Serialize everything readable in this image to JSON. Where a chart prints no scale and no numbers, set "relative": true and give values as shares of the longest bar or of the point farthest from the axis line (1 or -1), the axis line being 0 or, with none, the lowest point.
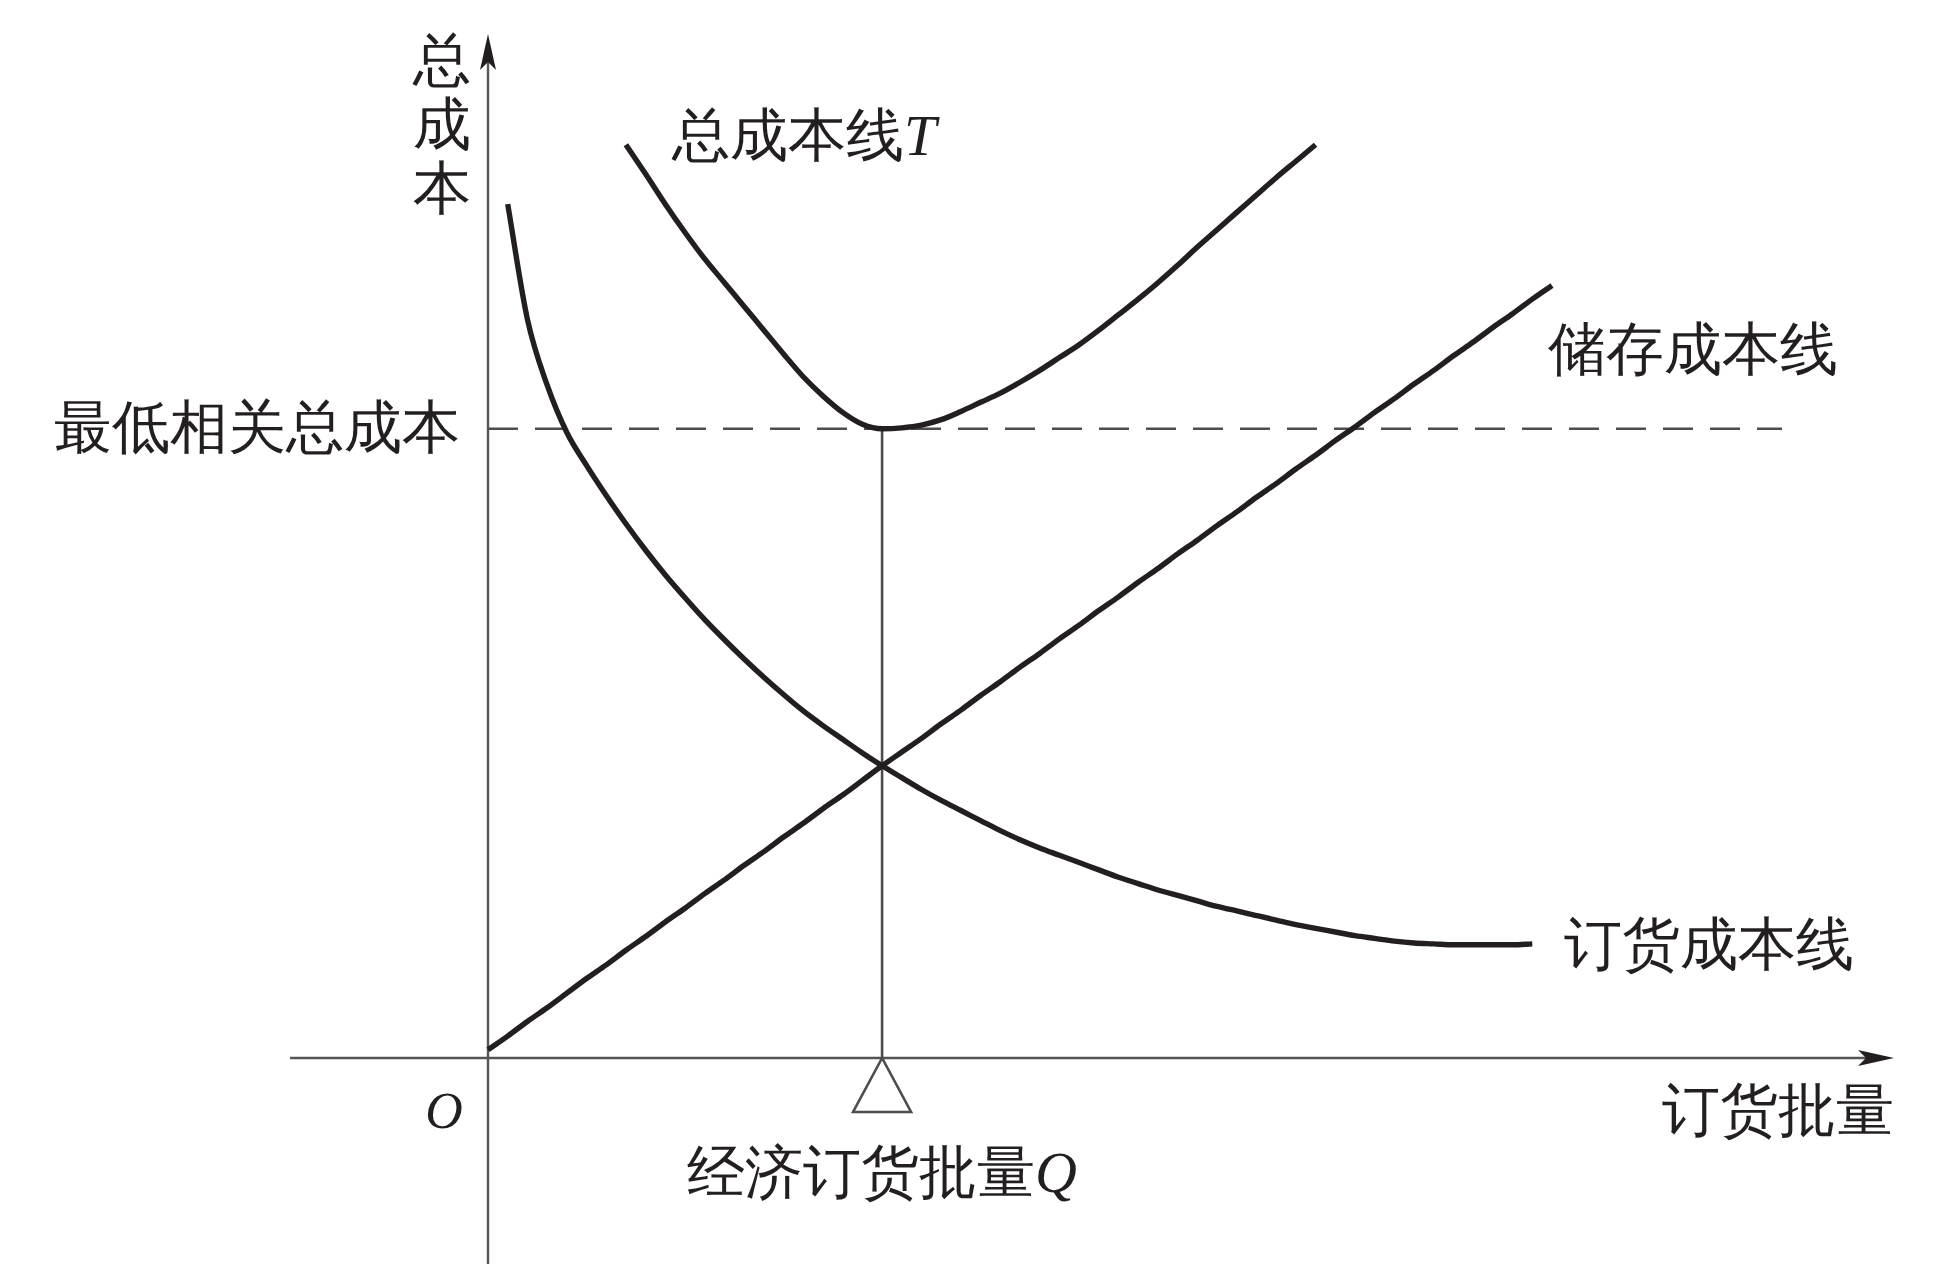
{
  "chart_data": {
    "type": "line",
    "relative": true,
    "xlabel": "订货批量",
    "ylabel": "总成本",
    "line_style": "solid",
    "categories": [
      null,
      null,
      null,
      null,
      null,
      null,
      null,
      null,
      null,
      null,
      null,
      null,
      null,
      null,
      null,
      null,
      null,
      null,
      null,
      null,
      null,
      null,
      null,
      null,
      null,
      null,
      null,
      null,
      null,
      null,
      null,
      null,
      null,
      null,
      null,
      null,
      null,
      null,
      null,
      null,
      null,
      null,
      null,
      null,
      null,
      null,
      null,
      null,
      null,
      null,
      null,
      null,
      null,
      null,
      null
    ],
    "series": [
      {
        "name": "总成本线T",
        "color": "#231f20",
        "values": [
          null,
          null,
          null,
          null,
          null,
          null,
          null,
          1.0,
          0.968,
          0.935,
          0.904,
          0.875,
          0.849,
          0.823,
          0.797,
          0.771,
          0.746,
          0.725,
          0.707,
          0.694,
          0.689,
          0.69,
          0.693,
          0.699,
          0.708,
          0.718,
          0.728,
          0.74,
          0.753,
          0.767,
          0.781,
          0.797,
          0.814,
          0.831,
          0.849,
          0.868,
          0.888,
          0.907,
          0.926,
          0.945,
          0.964,
          0.982,
          1.0,
          null,
          null,
          null,
          null,
          null,
          null,
          null,
          null,
          null,
          null,
          null,
          null
        ]
      },
      {
        "name": "储存成本线",
        "color": "#231f20",
        "values": [
          0.009,
          0.024,
          0.04,
          0.055,
          0.071,
          0.087,
          0.102,
          0.118,
          0.133,
          0.149,
          0.164,
          0.18,
          0.195,
          0.211,
          0.226,
          0.242,
          0.257,
          0.273,
          0.288,
          0.304,
          0.32,
          0.335,
          0.35,
          0.366,
          0.381,
          0.397,
          0.412,
          0.428,
          0.443,
          0.459,
          0.474,
          0.49,
          0.505,
          0.521,
          0.536,
          0.552,
          0.567,
          0.583,
          0.598,
          0.614,
          0.629,
          0.645,
          0.66,
          0.676,
          0.691,
          0.707,
          0.722,
          0.738,
          0.753,
          0.769,
          0.784,
          0.8,
          0.815,
          0.831,
          0.846
        ]
      },
      {
        "name": "订货成本线",
        "color": "#231f20",
        "values": [
          null,
          0.935,
          0.809,
          0.737,
          0.685,
          0.649,
          0.616,
          0.585,
          0.556,
          0.529,
          0.504,
          0.48,
          0.458,
          0.437,
          0.417,
          0.398,
          0.38,
          0.364,
          0.349,
          0.334,
          0.32,
          0.307,
          0.294,
          0.282,
          0.271,
          0.26,
          0.249,
          0.239,
          0.23,
          0.222,
          0.214,
          0.206,
          0.198,
          0.191,
          0.184,
          0.178,
          0.172,
          0.166,
          0.161,
          0.156,
          0.151,
          0.146,
          0.142,
          0.138,
          0.134,
          0.131,
          0.128,
          0.126,
          0.125,
          0.124,
          0.124,
          0.124,
          0.124,
          0.125,
          null
        ]
      }
    ],
    "ref_lines": [
      {
        "axis": "y",
        "value": 0.689,
        "label": "最低相关总成本",
        "line_style": "dashed",
        "color": "#4d4d4d"
      }
    ],
    "annotations": [
      "O",
      "经济订货批量Q"
    ]
  }
}
